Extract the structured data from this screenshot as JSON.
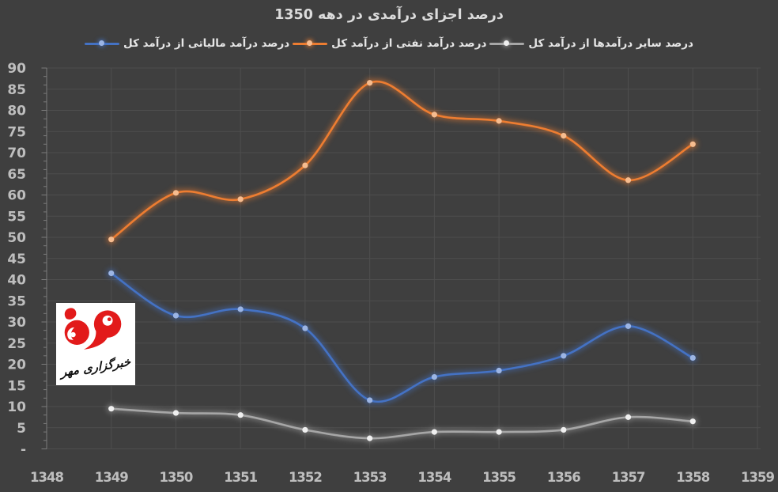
{
  "title": "درصد اجزای درآمدی در دهه 1350",
  "colors": {
    "background": "#3F3F3F",
    "gridline": "#4E4E4E",
    "axis_line": "#7B7B7B",
    "tick_mark": "#7B7B7B",
    "title_text": "#DCDCDC",
    "legend_text": "#E6E6E6",
    "axis_label_text": "#BEBEBE",
    "logo_red": "#E21A1A",
    "logo_black": "#111111"
  },
  "watermark": {
    "agency_name": "خبرگزاری مهر"
  },
  "chart_data": {
    "type": "line",
    "title": "درصد اجزای درآمدی در دهه 1350",
    "x": [
      1349,
      1350,
      1351,
      1352,
      1353,
      1354,
      1355,
      1356,
      1357,
      1358
    ],
    "xaxis_ticks": [
      "1348",
      "1349",
      "1350",
      "1351",
      "1352",
      "1353",
      "1354",
      "1355",
      "1356",
      "1357",
      "1358",
      "1359"
    ],
    "xlim": [
      1348,
      1359
    ],
    "ylim": [
      0,
      90
    ],
    "ytick_step": 5,
    "yzero_label": "-",
    "grid": true,
    "smooth_lines": true,
    "glow_effect": true,
    "legend_position": "top",
    "legend_order_note": "rendered right-to-left: other, oil, tax",
    "series": [
      {
        "name": "درصد سایر درآمدها از درآمد کل",
        "color": "#A6A6A6",
        "marker_color": "#EFEFEF",
        "values": [
          9.5,
          8.5,
          8,
          4.5,
          2.5,
          4,
          4,
          4.5,
          7.5,
          6.5
        ]
      },
      {
        "name": "درصد درآمد نفتی از درآمد کل",
        "color": "#ED7D31",
        "marker_color": "#F6BC8F",
        "values": [
          49.5,
          60.5,
          59,
          67,
          86.5,
          79,
          77.5,
          74,
          63.5,
          72
        ]
      },
      {
        "name": "درصد درآمد مالیاتی از درآمد کل",
        "color": "#4472C4",
        "marker_color": "#9CB5E4",
        "values": [
          41.5,
          31.5,
          33,
          28.5,
          11.5,
          17,
          18.5,
          22,
          29,
          21.5
        ]
      }
    ]
  }
}
